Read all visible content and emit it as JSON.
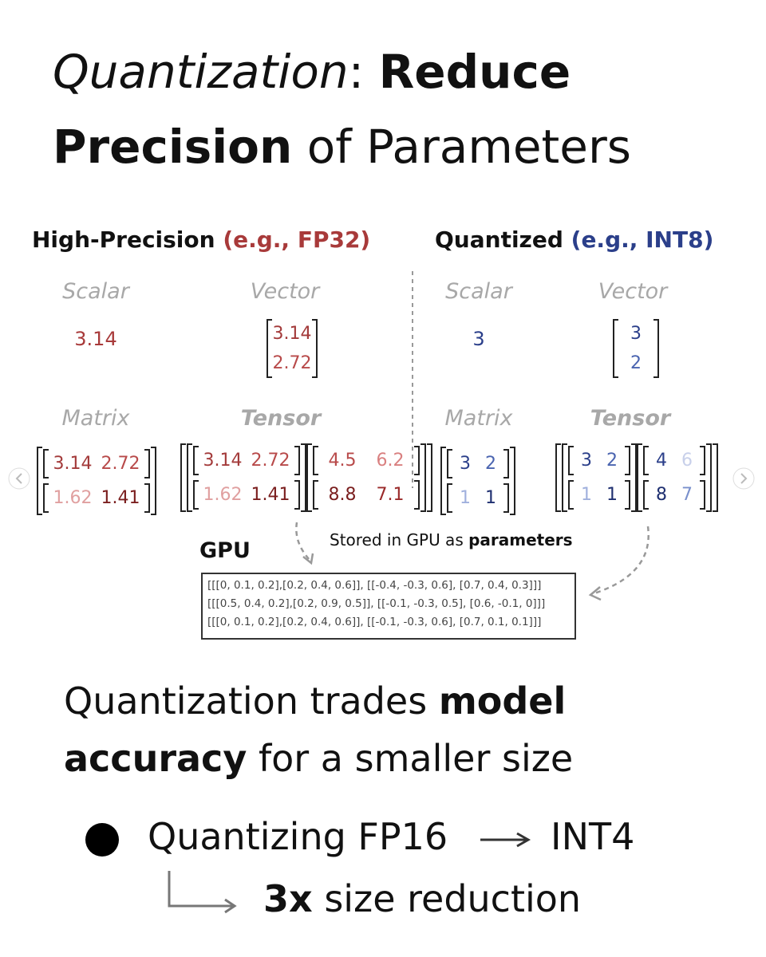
{
  "title": {
    "part1": "Quantization",
    "colon": ":",
    "part2": "Reduce",
    "part3": "Precision",
    "part4": "of Parameters"
  },
  "panels": [
    {
      "heading": "High-Precision",
      "format": "(e.g., FP32)",
      "scalar_label": "Scalar",
      "vector_label": "Vector",
      "matrix_label": "Matrix",
      "tensor_label": "Tensor",
      "scalar": 3.14,
      "vector": [
        3.14,
        2.72
      ],
      "matrix": [
        [
          3.14,
          2.72
        ],
        [
          1.62,
          1.41
        ]
      ],
      "tensor": [
        [
          [
            3.14,
            2.72
          ],
          [
            1.62,
            1.41
          ]
        ],
        [
          [
            4.5,
            6.2
          ],
          [
            8.8,
            7.1
          ]
        ]
      ]
    },
    {
      "heading": "Quantized",
      "format": "(e.g., INT8)",
      "scalar_label": "Scalar",
      "vector_label": "Vector",
      "matrix_label": "Matrix",
      "tensor_label": "Tensor",
      "scalar": 3,
      "vector": [
        3,
        2
      ],
      "matrix": [
        [
          3,
          2
        ],
        [
          1,
          1
        ]
      ],
      "tensor": [
        [
          [
            3,
            2
          ],
          [
            1,
            1
          ]
        ],
        [
          [
            4,
            6
          ],
          [
            8,
            7
          ]
        ]
      ]
    }
  ],
  "gpu": {
    "label": "GPU",
    "note": "Stored in GPU as",
    "note_bold": "parameters",
    "contents": [
      "[[[0, 0.1, 0.2],[0.2, 0.4, 0.6]], [[-0.4, -0.3, 0.6], [0.7, 0.4, 0.3]]]",
      "[[[0.5, 0.4, 0.2],[0.2, 0.9, 0.5]], [[-0.1, -0.3, 0.5], [0.6, -0.1, 0]]]",
      "[[[0, 0.1, 0.2],[0.2, 0.4, 0.6]], [[-0.1, -0.3, 0.6], [0.7, 0.1, 0.1]]]"
    ]
  },
  "summary": {
    "text1": "Quantization trades",
    "bold1": "model",
    "bold2": "accuracy",
    "text2": "for a smaller size"
  },
  "bullet": {
    "from": "Quantizing FP16",
    "to": "INT4",
    "result_bold": "3x",
    "result": "size reduction"
  }
}
